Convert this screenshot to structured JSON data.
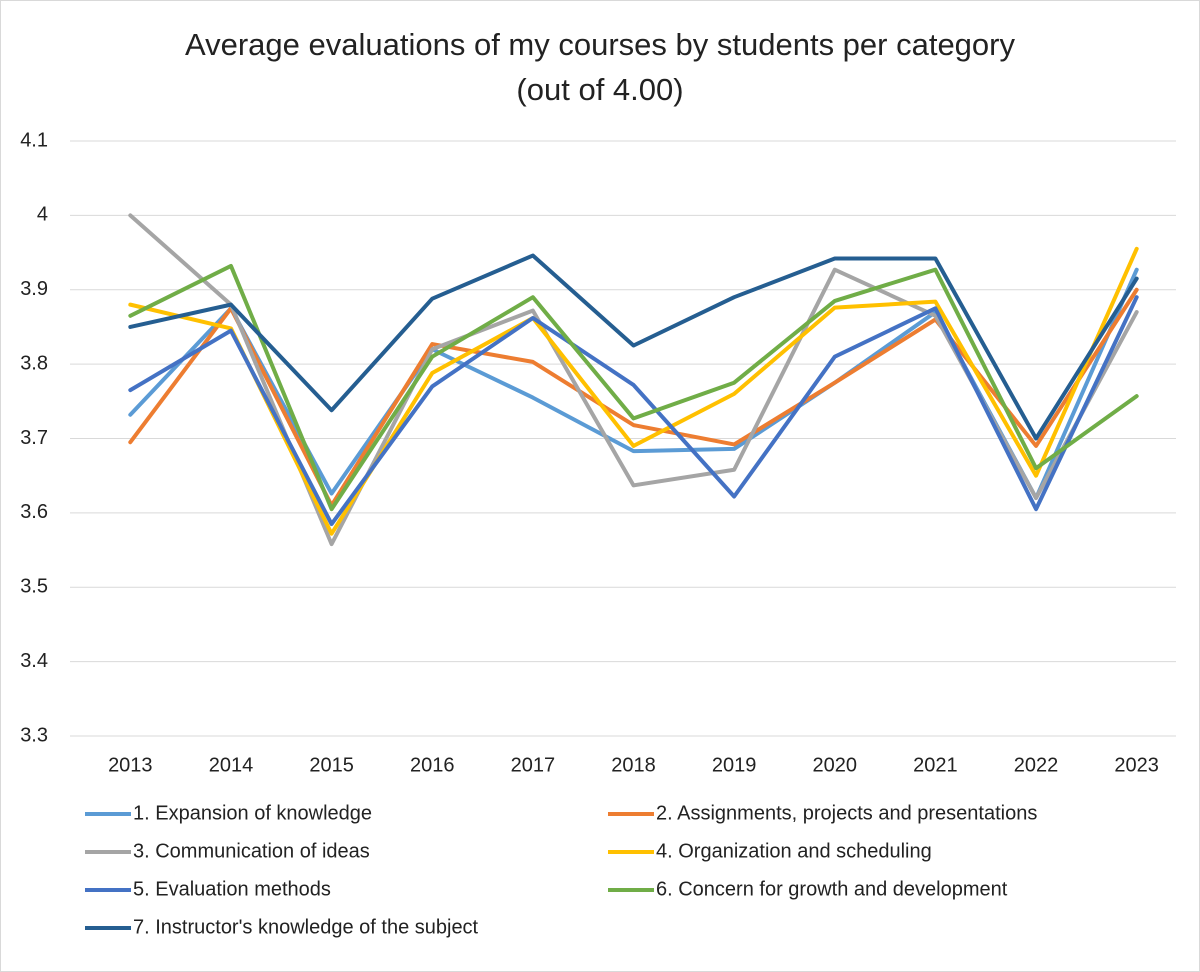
{
  "chart_data": {
    "type": "line",
    "title": "Average evaluations of my courses by students per category (out of 4.00)",
    "categories": [
      "2013",
      "2014",
      "2015",
      "2016",
      "2017",
      "2018",
      "2019",
      "2020",
      "2021",
      "2022",
      "2023"
    ],
    "series": [
      {
        "name": "1. Expansion of knowledge",
        "color": "#5b9bd5",
        "values": [
          3.732,
          3.875,
          3.626,
          3.82,
          3.755,
          3.683,
          3.686,
          3.775,
          3.87,
          3.62,
          3.927
        ]
      },
      {
        "name": "2. Assignments, projects and presentations",
        "color": "#ed7d31",
        "values": [
          3.695,
          3.875,
          3.61,
          3.827,
          3.803,
          3.718,
          3.692,
          3.775,
          3.86,
          3.69,
          3.9
        ]
      },
      {
        "name": "3. Communication of ideas",
        "color": "#a5a5a5",
        "values": [
          4.0,
          3.88,
          3.558,
          3.82,
          3.872,
          3.637,
          3.658,
          3.927,
          3.865,
          3.62,
          3.87
        ]
      },
      {
        "name": "4. Organization and scheduling",
        "color": "#ffc000",
        "values": [
          3.88,
          3.848,
          3.572,
          3.788,
          3.862,
          3.69,
          3.76,
          3.876,
          3.884,
          3.65,
          3.955
        ]
      },
      {
        "name": "5. Evaluation methods",
        "color": "#4472c4",
        "values": [
          3.765,
          3.845,
          3.585,
          3.77,
          3.862,
          3.772,
          3.622,
          3.81,
          3.875,
          3.605,
          3.89
        ]
      },
      {
        "name": "6. Concern for growth and development",
        "color": "#70ad47",
        "values": [
          3.865,
          3.932,
          3.605,
          3.81,
          3.89,
          3.727,
          3.775,
          3.885,
          3.927,
          3.66,
          3.757
        ]
      },
      {
        "name": "7. Instructor's knowledge of the subject",
        "color": "#255e91",
        "values": [
          3.85,
          3.88,
          3.738,
          3.888,
          3.946,
          3.825,
          3.89,
          3.942,
          3.942,
          3.7,
          3.915
        ]
      }
    ],
    "ylim": [
      3.3,
      4.1
    ],
    "yticks": [
      3.3,
      3.4,
      3.5,
      3.6,
      3.7,
      3.8,
      3.9,
      4,
      4.1
    ],
    "grid": true
  }
}
